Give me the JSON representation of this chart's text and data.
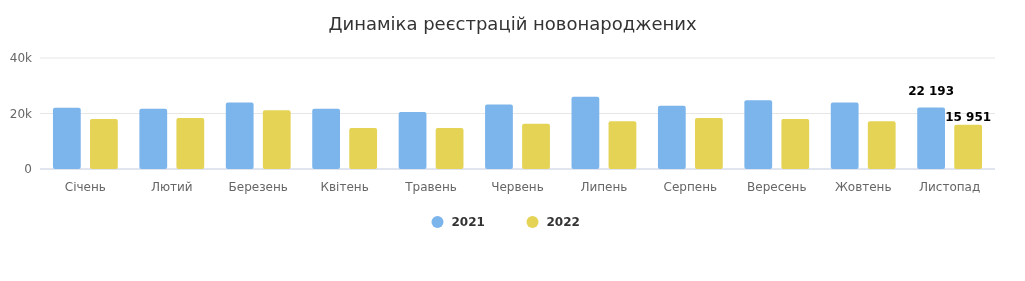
{
  "chart_data": {
    "type": "bar",
    "title": "Динаміка реєстрацій новонароджених",
    "categories": [
      "Січень",
      "Лютий",
      "Березень",
      "Квітень",
      "Травень",
      "Червень",
      "Липень",
      "Серпень",
      "Вересень",
      "Жовтень",
      "Листопад"
    ],
    "series": [
      {
        "name": "2021",
        "color": "#7cb5ec",
        "values": [
          22100,
          21700,
          24000,
          21700,
          20500,
          23200,
          26000,
          22800,
          24800,
          24000,
          22193
        ],
        "value_labels": [
          null,
          null,
          null,
          null,
          null,
          null,
          null,
          null,
          null,
          null,
          "22 193"
        ]
      },
      {
        "name": "2022",
        "color": "#e4d354",
        "values": [
          18000,
          18400,
          21200,
          14800,
          14800,
          16300,
          17200,
          18400,
          18000,
          17200,
          15951
        ],
        "value_labels": [
          null,
          null,
          null,
          null,
          null,
          null,
          null,
          null,
          null,
          null,
          "15 951"
        ]
      }
    ],
    "ylim": [
      0,
      40000
    ],
    "yticks": [
      {
        "value": 0,
        "label": "0"
      },
      {
        "value": 20000,
        "label": "20k"
      },
      {
        "value": 40000,
        "label": "40k"
      }
    ],
    "grid": "y",
    "legend": "bottom"
  }
}
